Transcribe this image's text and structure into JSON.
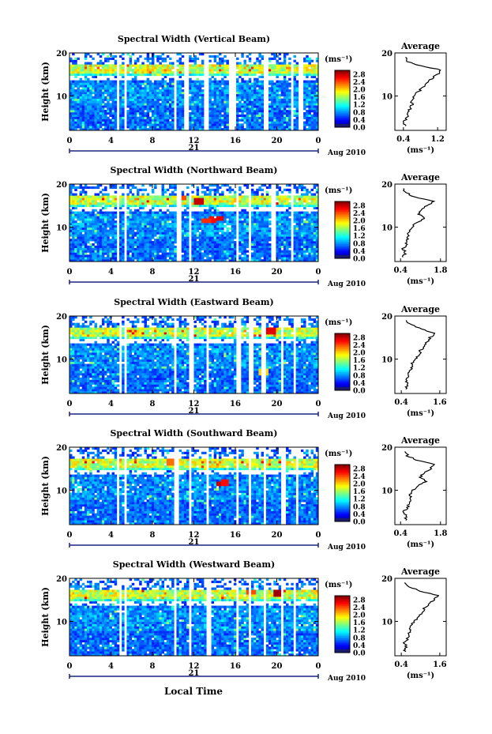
{
  "x_axis_label": "Local Time",
  "chart_data": [
    {
      "type": "heatmap",
      "title": "Spectral Width (Vertical Beam)",
      "ylabel": "Height (km)",
      "yticks": [
        "10",
        "20"
      ],
      "ylim": [
        2,
        20
      ],
      "xticks": [
        "0",
        "4",
        "8",
        "12",
        "16",
        "20",
        "0"
      ],
      "xlim": [
        0,
        24
      ],
      "date_day": "21",
      "date_label": "Aug 2010",
      "colorbar": {
        "unit": "(ms⁻¹)",
        "ticks": [
          "0.0",
          "0.4",
          "0.8",
          "1.2",
          "1.6",
          "2.0",
          "2.4",
          "2.8"
        ],
        "range": [
          0,
          3.0
        ]
      },
      "gaps_hours": [
        [
          4.5,
          4.8
        ],
        [
          5.2,
          5.4
        ],
        [
          10.0,
          10.3
        ],
        [
          11.0,
          11.6
        ],
        [
          13.0,
          13.4
        ],
        [
          15.4,
          16.2
        ],
        [
          18.8,
          19.2
        ],
        [
          21.4,
          21.7
        ],
        [
          22.2,
          22.5
        ]
      ],
      "noise_level": 0.35,
      "spots": [],
      "average": {
        "title": "Average",
        "xlabel": "(ms⁻¹)",
        "xticks": [
          "0.4",
          "1.2"
        ],
        "xlim": [
          0.2,
          1.4
        ],
        "ylim": [
          2,
          20
        ],
        "yticks": [
          "10",
          "20"
        ],
        "height": [
          3,
          4,
          5,
          6,
          7,
          8,
          9,
          10,
          11,
          12,
          13,
          14,
          15,
          16,
          17,
          18,
          19
        ],
        "value": [
          0.45,
          0.42,
          0.5,
          0.48,
          0.55,
          0.6,
          0.58,
          0.65,
          0.75,
          0.85,
          0.95,
          1.05,
          1.2,
          1.3,
          0.8,
          0.5,
          0.45
        ]
      }
    },
    {
      "type": "heatmap",
      "title": "Spectral Width (Northward Beam)",
      "ylabel": "Height (km)",
      "yticks": [
        "10",
        "20"
      ],
      "ylim": [
        2,
        20
      ],
      "xticks": [
        "0",
        "4",
        "8",
        "12",
        "16",
        "20",
        "0"
      ],
      "xlim": [
        0,
        24
      ],
      "date_day": "21",
      "date_label": "Aug 2010",
      "colorbar": {
        "unit": "(ms⁻¹)",
        "ticks": [
          "0.0",
          "0.4",
          "0.8",
          "1.2",
          "1.6",
          "2.0",
          "2.4",
          "2.8"
        ],
        "range": [
          0,
          3.0
        ]
      },
      "gaps_hours": [
        [
          4.6,
          4.9
        ],
        [
          5.3,
          5.5
        ],
        [
          10.4,
          10.8
        ],
        [
          11.5,
          11.7
        ],
        [
          16.0,
          16.4
        ],
        [
          17.2,
          17.5
        ],
        [
          19.5,
          19.8
        ],
        [
          21.3,
          21.6
        ]
      ],
      "noise_level": 0.35,
      "spots": [
        [
          13.8,
          11.8,
          2.6
        ],
        [
          12.5,
          16.0,
          2.8
        ],
        [
          10.8,
          17.0,
          2.4
        ],
        [
          14.5,
          12.0,
          2.7
        ],
        [
          13.2,
          11.6,
          2.5
        ]
      ],
      "average": {
        "title": "Average",
        "xlabel": "(ms⁻¹)",
        "xticks": [
          "0.4",
          "1.8"
        ],
        "xlim": [
          0.2,
          2.0
        ],
        "ylim": [
          2,
          20
        ],
        "yticks": [
          "10",
          "20"
        ],
        "height": [
          3,
          4,
          5,
          6,
          7,
          8,
          9,
          10,
          11,
          12,
          13,
          14,
          15,
          16,
          17,
          18,
          19
        ],
        "value": [
          0.5,
          0.55,
          0.5,
          0.62,
          0.6,
          0.7,
          0.68,
          0.8,
          0.95,
          1.25,
          1.05,
          1.1,
          1.35,
          1.55,
          0.9,
          0.6,
          0.5
        ]
      }
    },
    {
      "type": "heatmap",
      "title": "Spectral Width (Eastward Beam)",
      "ylabel": "Height (km)",
      "yticks": [
        "10",
        "20"
      ],
      "ylim": [
        2,
        20
      ],
      "xticks": [
        "0",
        "4",
        "8",
        "12",
        "16",
        "20",
        "0"
      ],
      "xlim": [
        0,
        24
      ],
      "date_day": "21",
      "date_label": "Aug 2010",
      "colorbar": {
        "unit": "(ms⁻¹)",
        "ticks": [
          "0.0",
          "0.4",
          "0.8",
          "1.2",
          "1.6",
          "2.0",
          "2.4",
          "2.8"
        ],
        "range": [
          0,
          3.0
        ]
      },
      "gaps_hours": [
        [
          4.7,
          5.0
        ],
        [
          5.3,
          5.6
        ],
        [
          10.1,
          10.4
        ],
        [
          11.6,
          11.9
        ],
        [
          13.2,
          13.5
        ],
        [
          16.1,
          16.5
        ],
        [
          17.4,
          17.7
        ],
        [
          18.6,
          18.9
        ],
        [
          20.4,
          20.7
        ],
        [
          21.5,
          21.8
        ]
      ],
      "noise_level": 0.3,
      "spots": [
        [
          19.5,
          16.5,
          2.7
        ],
        [
          18.7,
          7.0,
          2.0
        ]
      ],
      "average": {
        "title": "Average",
        "xlabel": "(ms⁻¹)",
        "xticks": [
          "0.4",
          "1.6"
        ],
        "xlim": [
          0.2,
          1.8
        ],
        "ylim": [
          2,
          20
        ],
        "yticks": [
          "10",
          "20"
        ],
        "height": [
          3,
          4,
          5,
          6,
          7,
          8,
          9,
          10,
          11,
          12,
          13,
          14,
          15,
          16,
          17,
          18,
          19
        ],
        "value": [
          0.55,
          0.6,
          0.55,
          0.65,
          0.62,
          0.72,
          0.75,
          0.85,
          0.95,
          1.0,
          1.1,
          1.2,
          1.3,
          1.45,
          1.0,
          0.7,
          0.55
        ]
      }
    },
    {
      "type": "heatmap",
      "title": "Spectral Width (Southward Beam)",
      "ylabel": "Height (km)",
      "yticks": [
        "10",
        "20"
      ],
      "ylim": [
        2,
        20
      ],
      "xticks": [
        "0",
        "4",
        "8",
        "12",
        "16",
        "20",
        "0"
      ],
      "xlim": [
        0,
        24
      ],
      "date_day": "21",
      "date_label": "Aug 2010",
      "colorbar": {
        "unit": "(ms⁻¹)",
        "ticks": [
          "0.0",
          "0.4",
          "0.8",
          "1.2",
          "1.6",
          "2.0",
          "2.4",
          "2.8"
        ],
        "range": [
          0,
          3.0
        ]
      },
      "gaps_hours": [
        [
          4.6,
          4.9
        ],
        [
          5.2,
          5.5
        ],
        [
          10.2,
          10.5
        ],
        [
          11.4,
          11.7
        ],
        [
          13.2,
          13.5
        ],
        [
          16.0,
          16.4
        ],
        [
          17.3,
          17.6
        ],
        [
          18.7,
          19.0
        ],
        [
          20.5,
          20.8
        ],
        [
          21.8,
          22.1
        ]
      ],
      "noise_level": 0.35,
      "spots": [
        [
          14.6,
          11.5,
          2.8
        ],
        [
          15.0,
          11.8,
          2.6
        ],
        [
          9.8,
          16.5,
          2.3
        ]
      ],
      "average": {
        "title": "Average",
        "xlabel": "(ms⁻¹)",
        "xticks": [
          "0.4",
          "1.8"
        ],
        "xlim": [
          0.2,
          2.0
        ],
        "ylim": [
          2,
          20
        ],
        "yticks": [
          "10",
          "20"
        ],
        "height": [
          3,
          4,
          5,
          6,
          7,
          8,
          9,
          10,
          11,
          12,
          13,
          14,
          15,
          16,
          17,
          18,
          19
        ],
        "value": [
          0.55,
          0.6,
          0.5,
          0.65,
          0.7,
          0.75,
          0.72,
          0.85,
          1.0,
          1.3,
          1.1,
          1.2,
          1.45,
          1.6,
          0.95,
          0.65,
          0.55
        ]
      }
    },
    {
      "type": "heatmap",
      "title": "Spectral Width (Westward Beam)",
      "ylabel": "Height (km)",
      "yticks": [
        "10",
        "20"
      ],
      "ylim": [
        2,
        20
      ],
      "xticks": [
        "0",
        "4",
        "8",
        "12",
        "16",
        "20",
        "0"
      ],
      "xlim": [
        0,
        24
      ],
      "date_day": "21",
      "date_label": "Aug 2010",
      "colorbar": {
        "unit": "(ms⁻¹)",
        "ticks": [
          "0.0",
          "0.4",
          "0.8",
          "1.2",
          "1.6",
          "2.0",
          "2.4",
          "2.8"
        ],
        "range": [
          0,
          3.0
        ]
      },
      "gaps_hours": [
        [
          4.7,
          5.0
        ],
        [
          5.3,
          5.6
        ],
        [
          10.1,
          10.4
        ],
        [
          11.4,
          11.7
        ],
        [
          13.3,
          13.6
        ],
        [
          16.0,
          16.4
        ],
        [
          17.3,
          17.6
        ],
        [
          18.7,
          19.0
        ],
        [
          20.4,
          20.7
        ],
        [
          21.6,
          21.9
        ]
      ],
      "noise_level": 0.3,
      "spots": [
        [
          20.2,
          16.5,
          2.9
        ],
        [
          17.6,
          17.0,
          2.4
        ]
      ],
      "average": {
        "title": "Average",
        "xlabel": "(ms⁻¹)",
        "xticks": [
          "0.4",
          "1.6"
        ],
        "xlim": [
          0.2,
          1.8
        ],
        "ylim": [
          2,
          20
        ],
        "yticks": [
          "10",
          "20"
        ],
        "height": [
          3,
          4,
          5,
          6,
          7,
          8,
          9,
          10,
          11,
          12,
          13,
          14,
          15,
          16,
          17,
          18,
          19
        ],
        "value": [
          0.5,
          0.55,
          0.5,
          0.6,
          0.62,
          0.68,
          0.7,
          0.8,
          0.92,
          1.05,
          1.1,
          1.25,
          1.4,
          1.55,
          1.0,
          0.65,
          0.5
        ]
      }
    }
  ]
}
